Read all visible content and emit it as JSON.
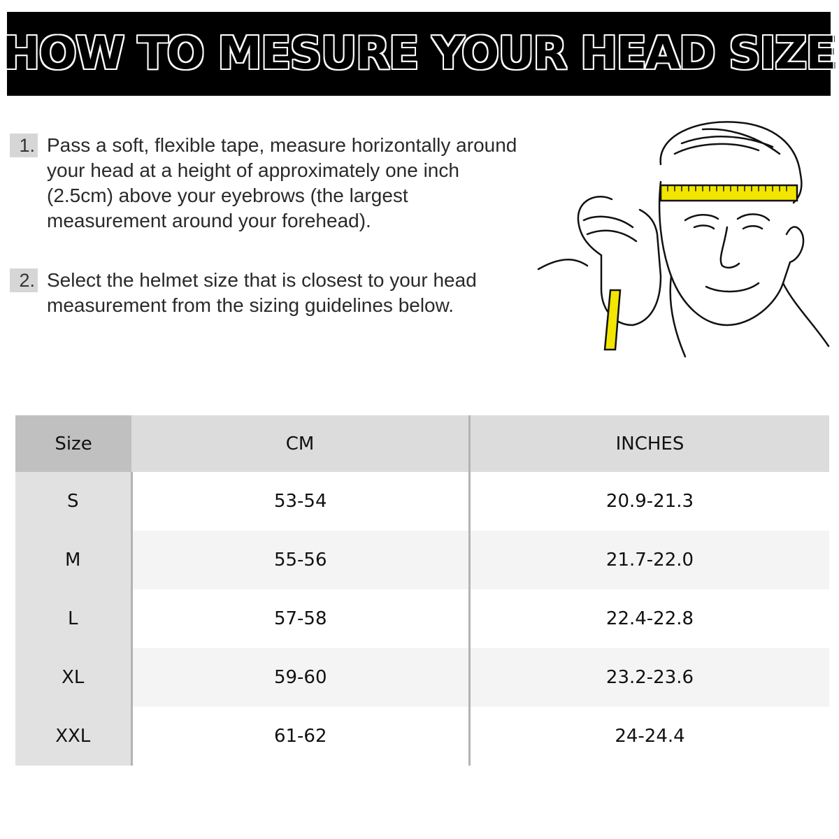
{
  "title": "HOW TO MESURE YOUR HEAD SIZE",
  "steps": [
    {
      "number": "1.",
      "text": "Pass a soft, flexible tape, measure horizontally around your head at a height of approximately one inch (2.5cm) above your eyebrows (the largest measurement around your forehead)."
    },
    {
      "number": "2.",
      "text": "Select the helmet size that is closest to your head measurement from the sizing guidelines below."
    }
  ],
  "illustration": {
    "icon": "man-measuring-head-with-tape-illustration",
    "tape_color": "#f2e600"
  },
  "table": {
    "headers": [
      "Size",
      "CM",
      "INCHES"
    ],
    "rows": [
      [
        "S",
        "53-54",
        "20.9-21.3"
      ],
      [
        "M",
        "55-56",
        "21.7-22.0"
      ],
      [
        "L",
        "57-58",
        "22.4-22.8"
      ],
      [
        "XL",
        "59-60",
        "23.2-23.6"
      ],
      [
        "XXL",
        "61-62",
        "24-24.4"
      ]
    ]
  }
}
